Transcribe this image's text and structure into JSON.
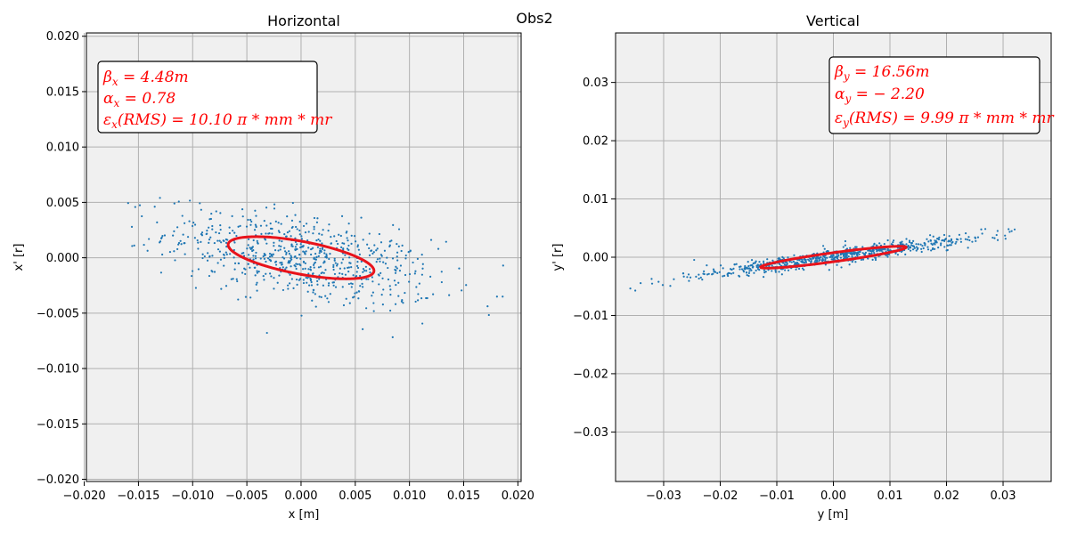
{
  "figure": {
    "suptitle": "Obs2"
  },
  "colors": {
    "points": "#1f77b4",
    "ellipse": "#e8131b",
    "annotation": "#ff0000",
    "axes_bg": "#f0f0f0",
    "grid": "#b0b0b0"
  },
  "chart_data": [
    {
      "type": "scatter",
      "title": "Horizontal",
      "xlabel": "x [m]",
      "ylabel": "x' [r]",
      "xlim": [
        -0.0198,
        0.0203
      ],
      "ylim": [
        -0.0202,
        0.0203
      ],
      "xticks": [
        -0.02,
        -0.015,
        -0.01,
        -0.005,
        0.0,
        0.005,
        0.01,
        0.015,
        0.02
      ],
      "xtick_labels": [
        "−0.020",
        "−0.015",
        "−0.010",
        "−0.005",
        "0.000",
        "0.005",
        "0.010",
        "0.015",
        "0.020"
      ],
      "yticks": [
        -0.02,
        -0.015,
        -0.01,
        -0.005,
        0.0,
        0.005,
        0.01,
        0.015,
        0.02
      ],
      "ytick_labels": [
        "−0.020",
        "−0.015",
        "−0.010",
        "−0.005",
        "0.000",
        "0.005",
        "0.010",
        "0.015",
        "0.020"
      ],
      "grid": true,
      "annotation_position": "top-left",
      "annotation_lines": [
        "βx = 4.48m",
        "αx = 0.78",
        "εx(RMS) = 10.10 π * mm * mr"
      ],
      "twiss": {
        "beta": 4.48,
        "alpha": 0.78,
        "emittance_rms": 10.1
      },
      "ellipse": {
        "beta": 4.48,
        "alpha": 0.78,
        "emittance": 1.01e-05
      },
      "cloud": {
        "n": 700,
        "sigma": 0.0062,
        "slope": -0.174,
        "spread": 0.0019,
        "xmin": -0.0196,
        "xmax": 0.019
      }
    },
    {
      "type": "scatter",
      "title": "Vertical",
      "xlabel": "y [m]",
      "ylabel": "y' [r]",
      "xlim": [
        -0.0385,
        0.0385
      ],
      "ylim": [
        -0.0385,
        0.0385
      ],
      "xticks": [
        -0.03,
        -0.02,
        -0.01,
        0.0,
        0.01,
        0.02,
        0.03
      ],
      "xtick_labels": [
        "−0.03",
        "−0.02",
        "−0.01",
        "0.00",
        "0.01",
        "0.02",
        "0.03"
      ],
      "yticks": [
        -0.03,
        -0.02,
        -0.01,
        0.0,
        0.01,
        0.02,
        0.03
      ],
      "ytick_labels": [
        "−0.03",
        "−0.02",
        "−0.01",
        "0.00",
        "0.01",
        "0.02",
        "0.03"
      ],
      "grid": true,
      "annotation_position": "top-right",
      "annotation_lines": [
        "βy = 16.56m",
        "αy = − 2.20",
        "εy(RMS) = 9.99 π * mm * mr"
      ],
      "twiss": {
        "beta": 16.56,
        "alpha": -2.2,
        "emittance_rms": 9.99
      },
      "ellipse": {
        "beta": 16.56,
        "alpha": -2.2,
        "emittance": 9.99e-06
      },
      "cloud": {
        "n": 700,
        "sigma": 0.0128,
        "slope": 0.134,
        "spread": 0.0007,
        "xmin": -0.036,
        "xmax": 0.0355
      }
    }
  ]
}
